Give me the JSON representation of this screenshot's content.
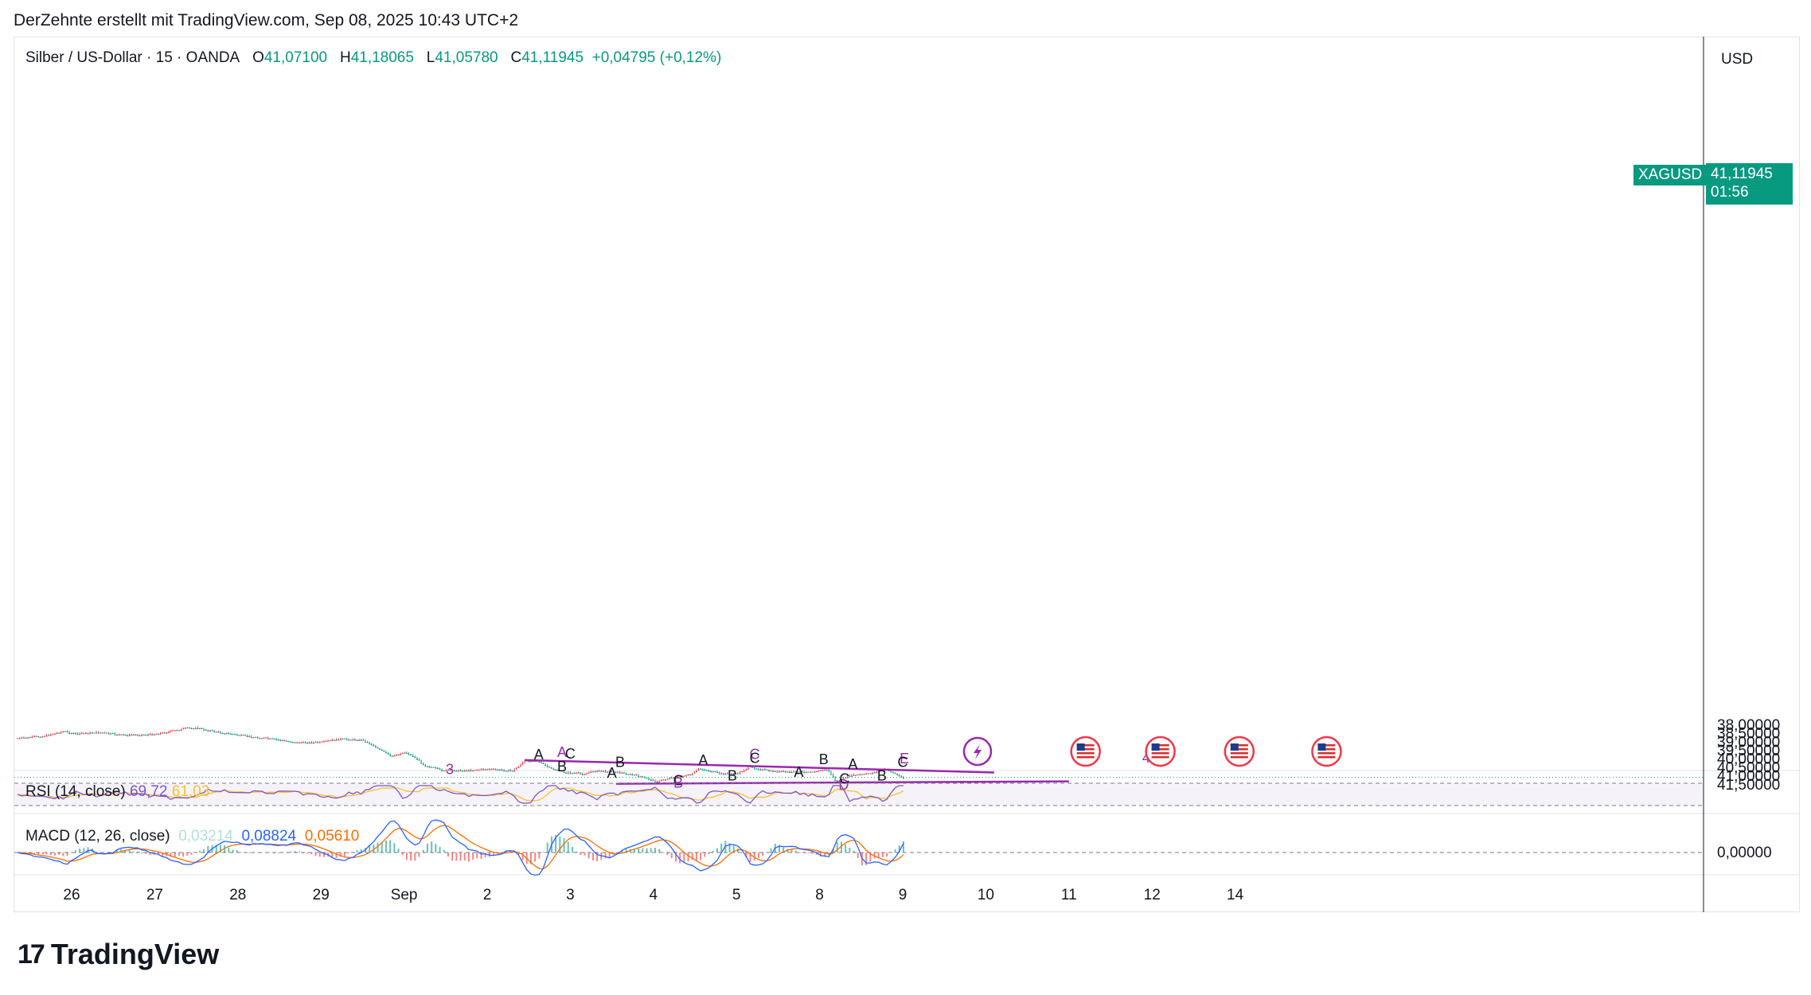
{
  "header": {
    "caption": "DerZehnte erstellt mit TradingView.com, Sep 08, 2025 10:43 UTC+2"
  },
  "legend": {
    "symbol": "Silber / US-Dollar · 15 · OANDA",
    "open_label": "O",
    "open": "41,07100",
    "high_label": "H",
    "high": "41,18065",
    "low_label": "L",
    "low": "41,05780",
    "close_label": "C",
    "close": "41,11945",
    "change": "+0,04795 (+0,12%)"
  },
  "currency": "USD",
  "price_tag": {
    "ticker": "XAGUSD",
    "value": "41,11945",
    "countdown": "01:56"
  },
  "rsi": {
    "title": "RSI (14, close)",
    "value": "69,72",
    "ma": "61,03"
  },
  "macd": {
    "title": "MACD (12, 26, close)",
    "histogram": "0,03214",
    "macd": "0,08824",
    "signal": "0,05610"
  },
  "brand": {
    "name": "TradingView"
  },
  "colors": {
    "up": "#089981",
    "down": "#f23645",
    "wave": "#9c27b0",
    "macd_line": "#2962ff",
    "signal_line": "#ff6d00"
  },
  "chart_data": {
    "type": "candlestick",
    "y_ticks": [
      "41,50000",
      "41,00000",
      "40,50000",
      "40,00000",
      "39,50000",
      "39,00000",
      "38,50000",
      "38,00000"
    ],
    "y_tick_values": [
      41.5,
      41.0,
      40.5,
      40.0,
      39.5,
      39.0,
      38.5,
      38.0
    ],
    "ylim": [
      37.75,
      41.85
    ],
    "macd_ticks": [
      "0,00000"
    ],
    "x_ticks": [
      "26",
      "27",
      "28",
      "29",
      "Sep",
      "2",
      "3",
      "4",
      "5",
      "8",
      "9",
      "10",
      "11",
      "12",
      "14"
    ],
    "x_tick_days": [
      0,
      1,
      2,
      3,
      4,
      5,
      6,
      7,
      8,
      9,
      10,
      11,
      12,
      13,
      14
    ],
    "price_path": [
      {
        "d": -0.65,
        "p": 38.82
      },
      {
        "d": -0.35,
        "p": 38.68
      },
      {
        "d": -0.1,
        "p": 38.4
      },
      {
        "d": 0.05,
        "p": 38.56
      },
      {
        "d": 0.3,
        "p": 38.45
      },
      {
        "d": 0.6,
        "p": 38.62
      },
      {
        "d": 0.9,
        "p": 38.6
      },
      {
        "d": 1.1,
        "p": 38.48
      },
      {
        "d": 1.4,
        "p": 38.2
      },
      {
        "d": 1.5,
        "p": 38.2
      },
      {
        "d": 1.75,
        "p": 38.44
      },
      {
        "d": 2.1,
        "p": 38.68
      },
      {
        "d": 2.4,
        "p": 38.85
      },
      {
        "d": 2.7,
        "p": 39.05
      },
      {
        "d": 3.0,
        "p": 39.05
      },
      {
        "d": 3.2,
        "p": 38.85
      },
      {
        "d": 3.5,
        "p": 38.9
      },
      {
        "d": 3.7,
        "p": 39.4
      },
      {
        "d": 3.85,
        "p": 39.9
      },
      {
        "d": 4.0,
        "p": 39.6
      },
      {
        "d": 4.12,
        "p": 39.88
      },
      {
        "d": 4.25,
        "p": 40.4
      },
      {
        "d": 4.45,
        "p": 40.68
      },
      {
        "d": 4.75,
        "p": 40.7
      },
      {
        "d": 5.0,
        "p": 40.62
      },
      {
        "d": 5.3,
        "p": 40.72
      },
      {
        "d": 5.45,
        "p": 40.15
      },
      {
        "d": 5.6,
        "p": 40.1
      },
      {
        "d": 5.75,
        "p": 40.55
      },
      {
        "d": 5.95,
        "p": 40.82
      },
      {
        "d": 6.15,
        "p": 40.9
      },
      {
        "d": 6.3,
        "p": 40.72
      },
      {
        "d": 6.55,
        "p": 40.78
      },
      {
        "d": 6.8,
        "p": 41.0
      },
      {
        "d": 7.05,
        "p": 41.35
      },
      {
        "d": 7.2,
        "p": 41.12
      },
      {
        "d": 7.45,
        "p": 40.95
      },
      {
        "d": 7.55,
        "p": 40.58
      },
      {
        "d": 7.8,
        "p": 40.88
      },
      {
        "d": 8.0,
        "p": 40.9
      },
      {
        "d": 8.15,
        "p": 40.5
      },
      {
        "d": 8.4,
        "p": 40.72
      },
      {
        "d": 8.7,
        "p": 40.82
      },
      {
        "d": 8.9,
        "p": 40.75
      },
      {
        "d": 9.1,
        "p": 40.65
      },
      {
        "d": 9.2,
        "p": 41.36
      },
      {
        "d": 9.35,
        "p": 41.0
      },
      {
        "d": 9.55,
        "p": 40.92
      },
      {
        "d": 9.7,
        "p": 40.75
      },
      {
        "d": 9.78,
        "p": 40.6
      },
      {
        "d": 9.9,
        "p": 40.85
      },
      {
        "d": 9.98,
        "p": 41.08
      },
      {
        "d": 10.02,
        "p": 41.12
      }
    ],
    "trendlines": [
      {
        "from": {
          "d": 6.55,
          "p": 41.49
        },
        "to": {
          "d": 12.0,
          "p": 41.35
        }
      },
      {
        "from": {
          "d": 5.45,
          "p": 40.1
        },
        "to": {
          "d": 11.1,
          "p": 40.83
        }
      }
    ],
    "wave_labels": [
      {
        "text": "3",
        "d": 4.55,
        "p": 40.92,
        "color": "purple"
      },
      {
        "text": "A",
        "d": 5.9,
        "p": 39.93,
        "color": "purple"
      },
      {
        "text": "B",
        "d": 7.3,
        "p": 41.71,
        "color": "purple"
      },
      {
        "text": "C",
        "d": 8.22,
        "p": 40.03,
        "color": "purple"
      },
      {
        "text": "D",
        "d": 9.29,
        "p": 41.83,
        "color": "purple"
      },
      {
        "text": "E",
        "d": 10.02,
        "p": 40.29,
        "color": "purple"
      },
      {
        "text": "4",
        "d": 12.93,
        "p": 40.24,
        "color": "purple"
      },
      {
        "text": "A",
        "d": 5.62,
        "p": 40.05,
        "color": "black"
      },
      {
        "text": "C",
        "d": 6.0,
        "p": 40.02,
        "color": "black"
      },
      {
        "text": "B",
        "d": 5.9,
        "p": 40.76,
        "color": "black"
      },
      {
        "text": "A",
        "d": 6.5,
        "p": 41.13,
        "color": "black"
      },
      {
        "text": "B",
        "d": 6.6,
        "p": 40.5,
        "color": "black"
      },
      {
        "text": "C",
        "d": 7.3,
        "p": 41.58,
        "color": "black"
      },
      {
        "text": "B",
        "d": 7.95,
        "p": 41.31,
        "color": "black"
      },
      {
        "text": "A",
        "d": 7.6,
        "p": 40.39,
        "color": "black"
      },
      {
        "text": "C",
        "d": 8.22,
        "p": 40.28,
        "color": "black"
      },
      {
        "text": "A",
        "d": 8.75,
        "p": 41.1,
        "color": "black"
      },
      {
        "text": "B",
        "d": 9.05,
        "p": 40.35,
        "color": "black"
      },
      {
        "text": "C",
        "d": 9.3,
        "p": 41.48,
        "color": "black"
      },
      {
        "text": "B",
        "d": 9.75,
        "p": 41.31,
        "color": "black"
      },
      {
        "text": "A",
        "d": 9.4,
        "p": 40.61,
        "color": "black"
      },
      {
        "text": "C",
        "d": 10.0,
        "p": 40.5,
        "color": "black"
      }
    ],
    "event_markers": [
      {
        "d": 10.9,
        "kind": "flash"
      },
      {
        "d": 12.2,
        "kind": "us-flag"
      },
      {
        "d": 13.1,
        "kind": "us-flag"
      },
      {
        "d": 14.05,
        "kind": "us-flag"
      },
      {
        "d": 15.1,
        "kind": "us-flag"
      }
    ]
  }
}
